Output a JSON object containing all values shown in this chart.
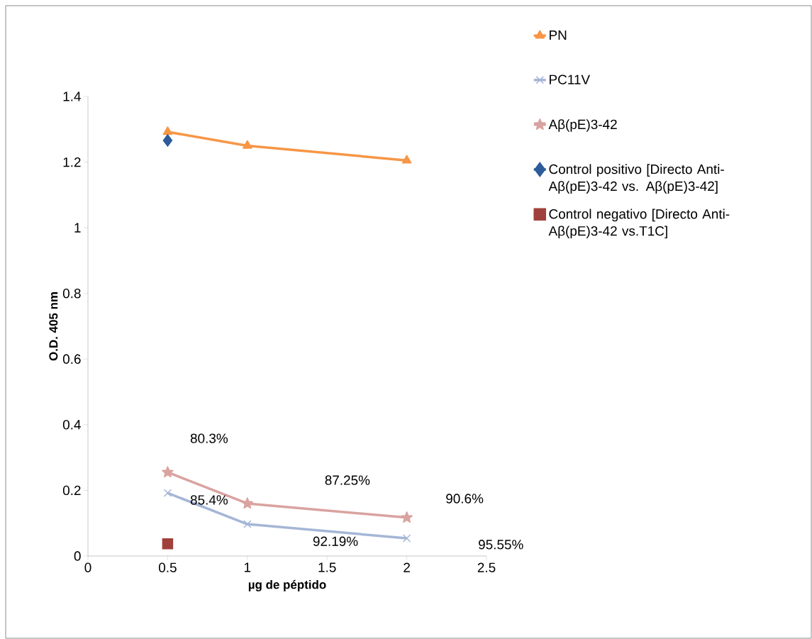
{
  "chart_data": {
    "type": "line",
    "xlabel": "µg de péptido",
    "ylabel": "O.D. 405 nm",
    "xlim": [
      0,
      2.5
    ],
    "xticks": [
      0,
      0.5,
      1,
      1.5,
      2,
      2.5
    ],
    "ylim": [
      0,
      1.4
    ],
    "yticks": [
      0,
      0.2,
      0.4,
      0.6,
      0.8,
      1,
      1.2,
      1.4
    ],
    "grid": false,
    "legend": "right",
    "series": [
      {
        "name": "PN",
        "marker": "triangle",
        "color": "#f79646",
        "x": [
          0.5,
          1,
          2
        ],
        "values": [
          1.292,
          1.25,
          1.205
        ]
      },
      {
        "name": "PC11V",
        "marker": "cross",
        "color": "#a5b6d6",
        "x": [
          0.5,
          1,
          2
        ],
        "values": [
          0.192,
          0.097,
          0.054
        ]
      },
      {
        "name": "Aβ(pE)3-42",
        "marker": "star",
        "color": "#d9a3a0",
        "x": [
          0.5,
          1,
          2
        ],
        "values": [
          0.255,
          0.16,
          0.117
        ]
      },
      {
        "name": "Control positivo [Directo Anti-Aβ(pE)3-42 vs. Aβ(pE)3-42]",
        "type": "scatter",
        "marker": "diamond",
        "color": "#2e5c9a",
        "x": [
          0.5
        ],
        "values": [
          1.266
        ]
      },
      {
        "name": "Control negativo [Directo Anti-Aβ(pE)3-42 vs.T1C]",
        "type": "scatter",
        "marker": "square",
        "color": "#a0403c",
        "x": [
          0.5
        ],
        "values": [
          0.037
        ]
      }
    ],
    "annotations": [
      "80.3%",
      "85.4%",
      "87.25%",
      "92.19%",
      "90.6%",
      "95.55%"
    ]
  }
}
